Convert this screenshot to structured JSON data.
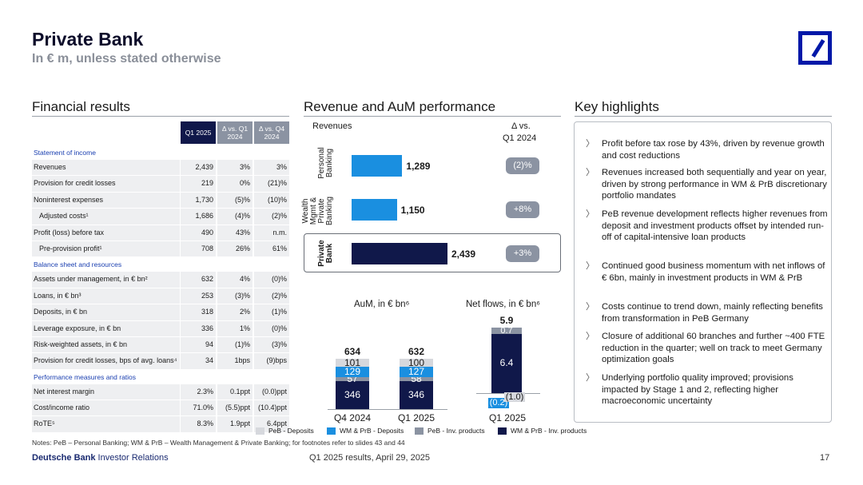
{
  "header": {
    "title": "Private Bank",
    "subtitle": "In € m, unless stated otherwise"
  },
  "colors": {
    "navy": "#10184a",
    "blue": "#1a8fe0",
    "grey": "#8b93a2",
    "light_grey": "#d6d8dd",
    "brand_blue": "#0018a8"
  },
  "financial_results": {
    "title": "Financial results",
    "columns": [
      "Q1 2025",
      "Δ vs. Q1 2024",
      "Δ vs. Q4 2024"
    ],
    "sections": [
      {
        "name": "Statement of income",
        "rows": [
          {
            "label": "Revenues",
            "v1": "2,439",
            "v2": "3%",
            "v3": "3%",
            "indent": false
          },
          {
            "label": "Provision for credit losses",
            "v1": "219",
            "v2": "0%",
            "v3": "(21)%",
            "indent": false
          },
          {
            "label": "Noninterest expenses",
            "v1": "1,730",
            "v2": "(5)%",
            "v3": "(10)%",
            "indent": false
          },
          {
            "label": "Adjusted costs¹",
            "v1": "1,686",
            "v2": "(4)%",
            "v3": "(2)%",
            "indent": true
          },
          {
            "label": "Profit (loss) before tax",
            "v1": "490",
            "v2": "43%",
            "v3": "n.m.",
            "indent": false
          },
          {
            "label": "Pre-provision profit¹",
            "v1": "708",
            "v2": "26%",
            "v3": "61%",
            "indent": true
          }
        ]
      },
      {
        "name": "Balance sheet and resources",
        "rows": [
          {
            "label": "Assets under management, in € bn²",
            "v1": "632",
            "v2": "4%",
            "v3": "(0)%",
            "indent": false
          },
          {
            "label": "Loans, in € bn³",
            "v1": "253",
            "v2": "(3)%",
            "v3": "(2)%",
            "indent": false
          },
          {
            "label": "Deposits, in € bn",
            "v1": "318",
            "v2": "2%",
            "v3": "(1)%",
            "indent": false
          },
          {
            "label": "Leverage exposure, in € bn",
            "v1": "336",
            "v2": "1%",
            "v3": "(0)%",
            "indent": false
          },
          {
            "label": "Risk-weighted assets, in € bn",
            "v1": "94",
            "v2": "(1)%",
            "v3": "(3)%",
            "indent": false
          },
          {
            "label": "Provision for credit losses, bps of avg. loans⁴",
            "v1": "34",
            "v2": "1bps",
            "v3": "(9)bps",
            "indent": false
          }
        ]
      },
      {
        "name": "Performance measures and ratios",
        "rows": [
          {
            "label": "Net interest margin",
            "v1": "2.3%",
            "v2": "0.1ppt",
            "v3": "(0.0)ppt",
            "indent": false
          },
          {
            "label": "Cost/income ratio",
            "v1": "71.0%",
            "v2": "(5.5)ppt",
            "v3": "(10.4)ppt",
            "indent": false
          },
          {
            "label": "RoTE⁵",
            "v1": "8.3%",
            "v2": "1.9ppt",
            "v3": "6.4ppt",
            "indent": false
          }
        ]
      }
    ]
  },
  "revenue": {
    "title": "Revenue and AuM performance",
    "revenues_label": "Revenues",
    "delta_label_1": "Δ vs.",
    "delta_label_2": "Q1 2024",
    "categories": [
      "Personal Banking",
      "Wealth Mgmt & Private Banking",
      "Private Bank"
    ],
    "cat_labels": [
      "Personal\nBanking",
      "Wealth\nMgmt &\nPrivate\nBanking",
      "Private\nBank"
    ],
    "values": [
      1289,
      1150,
      2439
    ],
    "value_labels": [
      "1,289",
      "1,150",
      "2,439"
    ],
    "deltas": [
      "(2)%",
      "+8%",
      "+3%"
    ]
  },
  "chart_data": [
    {
      "type": "bar",
      "title": "",
      "categories": [
        "Personal Banking",
        "Wealth Mgmt & Private Banking",
        "Private Bank"
      ],
      "values": [
        1289,
        1150,
        2439
      ],
      "ylabel": "Revenues"
    },
    {
      "type": "bar",
      "title": "AuM, in € bn⁶",
      "categories": [
        "Q4 2024",
        "Q1 2025"
      ],
      "series": [
        {
          "name": "WM & PrB - Inv. products",
          "values": [
            346,
            346
          ]
        },
        {
          "name": "PeB - Inv. products",
          "values": [
            57,
            58
          ]
        },
        {
          "name": "WM & PrB - Deposits",
          "values": [
            129,
            127
          ]
        },
        {
          "name": "PeB - Deposits",
          "values": [
            101,
            100
          ]
        }
      ],
      "totals": [
        634,
        632
      ]
    },
    {
      "type": "bar",
      "title": "Net flows, in € bn⁶",
      "categories": [
        "Q1 2025"
      ],
      "series": [
        {
          "name": "WM & PrB - Inv. products",
          "values": [
            6.4
          ]
        },
        {
          "name": "PeB - Inv. products",
          "values": [
            0.7
          ]
        },
        {
          "name": "WM & PrB - Deposits",
          "values": [
            -0.2
          ]
        },
        {
          "name": "PeB - Deposits",
          "values": [
            -1.0
          ]
        }
      ],
      "totals": [
        5.9
      ]
    }
  ],
  "aum": {
    "title": "AuM, in € bn⁶",
    "categories": [
      "Q4 2024",
      "Q1 2025"
    ],
    "totals": [
      "634",
      "632"
    ],
    "peb_dep": [
      "101",
      "100"
    ],
    "wm_dep": [
      "129",
      "127"
    ],
    "peb_inv": [
      "57",
      "58"
    ],
    "wm_inv": [
      "346",
      "346"
    ]
  },
  "netflows": {
    "title": "Net flows, in € bn⁶",
    "category": "Q1 2025",
    "total": "5.9",
    "wm_inv": "6.4",
    "peb_inv": "0.7",
    "wm_dep": "(0.2)",
    "peb_dep": "(1.0)"
  },
  "legend": [
    "PeB - Deposits",
    "WM & PrB - Deposits",
    "PeB - Inv. products",
    "WM & PrB - Inv. products"
  ],
  "highlights": {
    "title": "Key highlights",
    "items": [
      "Profit before tax rose by 43%, driven by revenue growth and cost reductions",
      "Revenues increased both sequentially and year on year, driven by strong performance in WM & PrB discretionary portfolio mandates",
      "PeB revenue development reflects higher revenues from deposit and investment products offset by intended run-off of capital-intensive loan products",
      "Continued good business momentum with net inflows of € 6bn, mainly in investment products in WM & PrB",
      "Costs continue to trend down, mainly reflecting benefits from transformation in PeB Germany",
      "Closure of additional 60 branches and further ~400 FTE reduction in the quarter; well on track to meet Germany optimization goals",
      "Underlying portfolio quality improved; provisions impacted by Stage 1 and 2, reflecting higher macroeconomic uncertainty"
    ]
  },
  "footer": {
    "notes": "Notes: PeB – Personal Banking; WM & PrB – Wealth Management & Private Banking; for footnotes refer to slides 43 and 44",
    "brand_bold": "Deutsche Bank",
    "brand_rest": " Investor Relations",
    "center": "Q1 2025 results, April 29, 2025",
    "page": "17"
  }
}
